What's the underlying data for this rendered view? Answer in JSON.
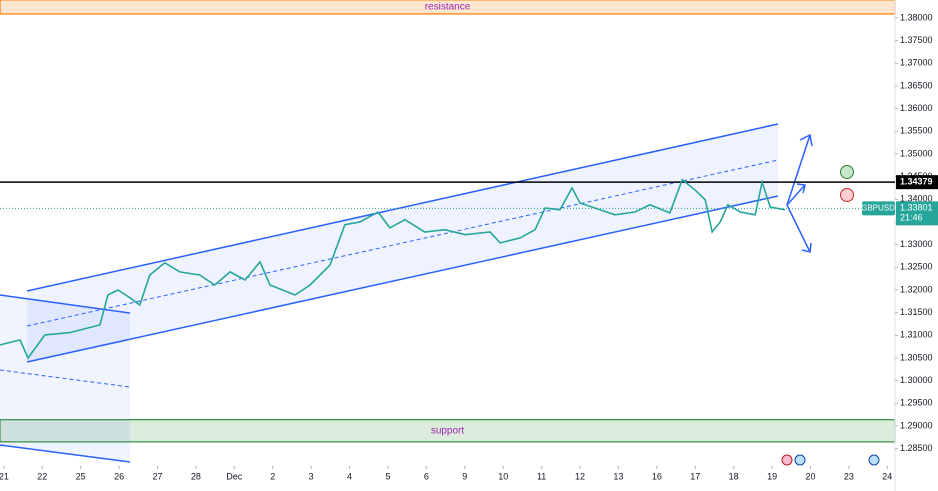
{
  "chart_data": {
    "type": "line",
    "x": [
      -0.1,
      0.42,
      0.63,
      1.07,
      1.72,
      2.5,
      2.71,
      2.97,
      3.28,
      3.54,
      3.8,
      4.19,
      4.58,
      5.1,
      5.49,
      5.89,
      6.28,
      6.67,
      6.93,
      7.58,
      7.97,
      8.49,
      8.88,
      9.27,
      9.74,
      10.05,
      10.44,
      10.96,
      11.48,
      12.01,
      12.66,
      12.92,
      13.44,
      13.83,
      14.09,
      14.48,
      14.79,
      15.0,
      15.52,
      15.91,
      16.43,
      16.82,
      17.34,
      17.66,
      17.99,
      18.26,
      18.44,
      18.65,
      18.85,
      19.17,
      19.56,
      19.74,
      19.95,
      20.34
    ],
    "series": [
      {
        "name": "GBPUSD",
        "color": "#26a69a",
        "values": [
          1.3079,
          1.309,
          1.305,
          1.3101,
          1.3106,
          1.3123,
          1.3189,
          1.32,
          1.3183,
          1.3167,
          1.3233,
          1.326,
          1.324,
          1.3233,
          1.3211,
          1.324,
          1.3222,
          1.3262,
          1.3211,
          1.3189,
          1.3211,
          1.3255,
          1.3344,
          1.335,
          1.3372,
          1.3337,
          1.3355,
          1.3328,
          1.3333,
          1.3322,
          1.3328,
          1.3304,
          1.3315,
          1.3333,
          1.3381,
          1.3377,
          1.3425,
          1.3392,
          1.3377,
          1.3366,
          1.3372,
          1.3388,
          1.337,
          1.3443,
          1.3421,
          1.3399,
          1.3328,
          1.335,
          1.3388,
          1.3372,
          1.3366,
          1.3438,
          1.3383,
          1.3377
        ]
      }
    ],
    "current_price": 1.33801,
    "current_time": "21:46",
    "level_line": 1.34379,
    "zones": [
      {
        "label": "resistance",
        "from": 1.3809,
        "to": 1.384,
        "color": "#f57c00"
      },
      {
        "label": "support",
        "from": 1.2865,
        "to": 1.2914,
        "color": "#388e3c"
      }
    ],
    "xlim": [
      -0.1,
      23.2
    ],
    "xticks": [
      {
        "value": 0,
        "label": "21"
      },
      {
        "value": 1,
        "label": "22"
      },
      {
        "value": 2,
        "label": "25"
      },
      {
        "value": 3,
        "label": "26"
      },
      {
        "value": 4,
        "label": "27"
      },
      {
        "value": 5,
        "label": "28"
      },
      {
        "value": 6,
        "label": "Dec"
      },
      {
        "value": 7,
        "label": "2"
      },
      {
        "value": 8,
        "label": "3"
      },
      {
        "value": 9,
        "label": "4"
      },
      {
        "value": 10,
        "label": "5"
      },
      {
        "value": 11,
        "label": "6"
      },
      {
        "value": 12,
        "label": "9"
      },
      {
        "value": 13,
        "label": "10"
      },
      {
        "value": 14,
        "label": "11"
      },
      {
        "value": 15,
        "label": "12"
      },
      {
        "value": 16,
        "label": "13"
      },
      {
        "value": 17,
        "label": "16"
      },
      {
        "value": 18,
        "label": "17"
      },
      {
        "value": 19,
        "label": "18"
      },
      {
        "value": 20,
        "label": "19"
      },
      {
        "value": 21,
        "label": "20"
      },
      {
        "value": 22,
        "label": "23"
      },
      {
        "value": 23,
        "label": "24"
      }
    ],
    "ylim": [
      1.28279,
      1.38397
    ],
    "yticks": [
      {
        "value": 1.285,
        "label": "1.28500"
      },
      {
        "value": 1.29,
        "label": "1.29000"
      },
      {
        "value": 1.295,
        "label": "1.29500"
      },
      {
        "value": 1.3,
        "label": "1.30000"
      },
      {
        "value": 1.305,
        "label": "1.30500"
      },
      {
        "value": 1.31,
        "label": "1.31000"
      },
      {
        "value": 1.315,
        "label": "1.31500"
      },
      {
        "value": 1.32,
        "label": "1.32000"
      },
      {
        "value": 1.325,
        "label": "1.32500"
      },
      {
        "value": 1.33,
        "label": "1.33000"
      },
      {
        "value": 1.335,
        "label": "1.33500"
      },
      {
        "value": 1.34,
        "label": "1.34000"
      },
      {
        "value": 1.345,
        "label": "1.34500"
      },
      {
        "value": 1.35,
        "label": "1.35000"
      },
      {
        "value": 1.355,
        "label": "1.35500"
      },
      {
        "value": 1.36,
        "label": "1.36000"
      },
      {
        "value": 1.365,
        "label": "1.36500"
      },
      {
        "value": 1.37,
        "label": "1.37000"
      },
      {
        "value": 1.375,
        "label": "1.37500"
      },
      {
        "value": 1.38,
        "label": "1.38000"
      }
    ]
  }
}
